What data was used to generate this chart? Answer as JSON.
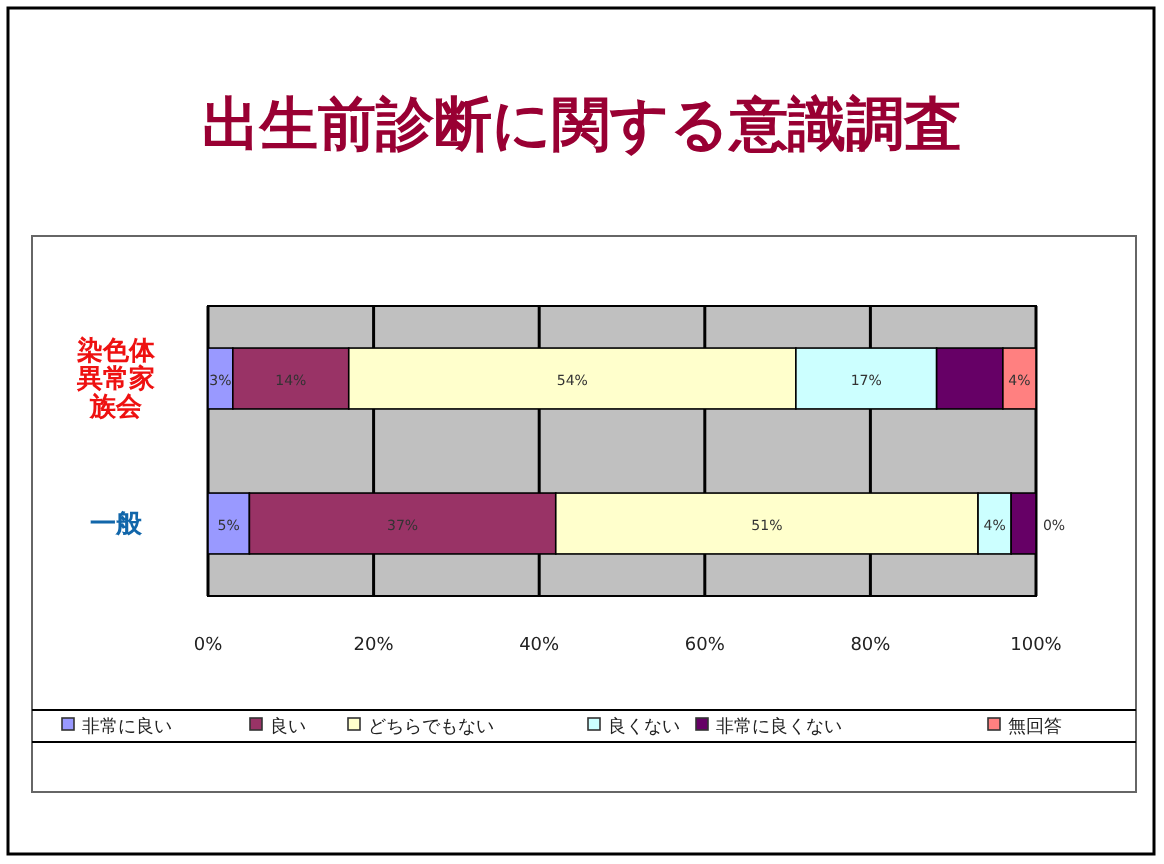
{
  "chart_data": {
    "type": "bar",
    "orientation": "horizontal",
    "stacked": true,
    "title": "出生前診断に関する意識調査",
    "categories": [
      "染色体異常家族会",
      "一般"
    ],
    "series": [
      {
        "name": "非常に良い",
        "color": "#9999ff",
        "values": [
          3,
          5
        ],
        "value_labels": [
          "3%",
          "5%"
        ]
      },
      {
        "name": "良い",
        "color": "#993366",
        "values": [
          14,
          37
        ],
        "value_labels": [
          "14%",
          "37%"
        ]
      },
      {
        "name": "どちらでもない",
        "color": "#ffffcc",
        "values": [
          54,
          51
        ],
        "value_labels": [
          "54%",
          "51%"
        ]
      },
      {
        "name": "良くない",
        "color": "#ccffff",
        "values": [
          17,
          4
        ],
        "value_labels": [
          "17%",
          "4%"
        ]
      },
      {
        "name": "非常に良くない",
        "color": "#660066",
        "values": [
          8,
          3
        ],
        "value_labels": [
          null,
          null
        ]
      },
      {
        "name": "無回答",
        "color": "#ff8080",
        "values": [
          4,
          0
        ],
        "value_labels": [
          "4%",
          "0%"
        ]
      }
    ],
    "xlim": [
      0,
      100
    ],
    "xticks": [
      {
        "value": 0,
        "label": "0%"
      },
      {
        "value": 20,
        "label": "20%"
      },
      {
        "value": 40,
        "label": "40%"
      },
      {
        "value": 60,
        "label": "60%"
      },
      {
        "value": 80,
        "label": "80%"
      },
      {
        "value": 100,
        "label": "100%"
      }
    ],
    "grid": "x",
    "legend": "bottom"
  }
}
